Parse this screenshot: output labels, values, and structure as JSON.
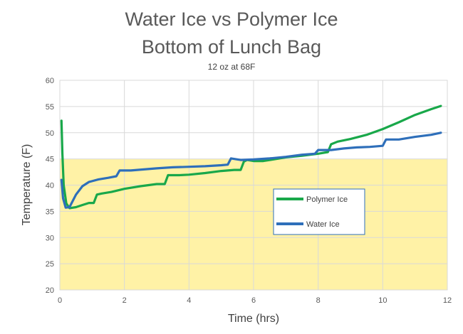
{
  "chart_data": {
    "type": "line",
    "title_line1": "Water Ice vs Polymer Ice",
    "title_line2": "Bottom of Lunch Bag",
    "subtitle": "12 oz at 68F",
    "xlabel": "Time (hrs)",
    "ylabel": "Temperature (F)",
    "xlim": [
      0,
      12
    ],
    "ylim": [
      20,
      60
    ],
    "xticks": [
      0,
      2,
      4,
      6,
      8,
      10,
      12
    ],
    "yticks": [
      20,
      25,
      30,
      35,
      40,
      45,
      50,
      55,
      60
    ],
    "grid": true,
    "legend_position": "center-right",
    "safe_zone": {
      "from": 20,
      "to": 45,
      "color": "#fff2a6"
    },
    "series": [
      {
        "name": "Polymer Ice",
        "color": "#19a84a",
        "points": [
          [
            0.05,
            52.3
          ],
          [
            0.08,
            46
          ],
          [
            0.12,
            40
          ],
          [
            0.2,
            36.5
          ],
          [
            0.3,
            35.6
          ],
          [
            0.5,
            35.8
          ],
          [
            0.7,
            36.2
          ],
          [
            0.9,
            36.6
          ],
          [
            1.05,
            36.6
          ],
          [
            1.15,
            38.2
          ],
          [
            1.3,
            38.4
          ],
          [
            1.6,
            38.7
          ],
          [
            2.0,
            39.3
          ],
          [
            2.5,
            39.8
          ],
          [
            3.0,
            40.2
          ],
          [
            3.25,
            40.2
          ],
          [
            3.35,
            41.9
          ],
          [
            3.7,
            41.9
          ],
          [
            4.0,
            42.0
          ],
          [
            4.5,
            42.3
          ],
          [
            5.0,
            42.7
          ],
          [
            5.4,
            42.9
          ],
          [
            5.6,
            42.9
          ],
          [
            5.7,
            44.5
          ],
          [
            5.8,
            44.8
          ],
          [
            6.0,
            44.6
          ],
          [
            6.3,
            44.6
          ],
          [
            6.6,
            44.9
          ],
          [
            7.0,
            45.3
          ],
          [
            7.5,
            45.6
          ],
          [
            8.0,
            46.0
          ],
          [
            8.3,
            46.3
          ],
          [
            8.4,
            47.8
          ],
          [
            8.6,
            48.3
          ],
          [
            9.0,
            48.8
          ],
          [
            9.5,
            49.6
          ],
          [
            10.0,
            50.7
          ],
          [
            10.5,
            52.0
          ],
          [
            11.0,
            53.4
          ],
          [
            11.5,
            54.5
          ],
          [
            11.8,
            55.1
          ]
        ]
      },
      {
        "name": "Water Ice",
        "color": "#2e6fba",
        "points": [
          [
            0.05,
            41.0
          ],
          [
            0.1,
            37.5
          ],
          [
            0.18,
            35.7
          ],
          [
            0.3,
            35.8
          ],
          [
            0.5,
            38.2
          ],
          [
            0.7,
            39.8
          ],
          [
            0.9,
            40.6
          ],
          [
            1.2,
            41.1
          ],
          [
            1.5,
            41.4
          ],
          [
            1.75,
            41.7
          ],
          [
            1.85,
            42.8
          ],
          [
            2.2,
            42.8
          ],
          [
            2.6,
            43.0
          ],
          [
            3.0,
            43.2
          ],
          [
            3.5,
            43.4
          ],
          [
            4.0,
            43.5
          ],
          [
            4.5,
            43.6
          ],
          [
            5.0,
            43.8
          ],
          [
            5.2,
            43.9
          ],
          [
            5.3,
            45.1
          ],
          [
            5.6,
            44.8
          ],
          [
            6.0,
            44.9
          ],
          [
            6.5,
            45.1
          ],
          [
            7.0,
            45.4
          ],
          [
            7.5,
            45.8
          ],
          [
            7.9,
            46.0
          ],
          [
            8.0,
            46.7
          ],
          [
            8.4,
            46.7
          ],
          [
            8.8,
            47.0
          ],
          [
            9.2,
            47.2
          ],
          [
            9.6,
            47.3
          ],
          [
            10.0,
            47.5
          ],
          [
            10.1,
            48.7
          ],
          [
            10.5,
            48.7
          ],
          [
            11.0,
            49.2
          ],
          [
            11.5,
            49.6
          ],
          [
            11.8,
            50.0
          ]
        ]
      }
    ]
  }
}
